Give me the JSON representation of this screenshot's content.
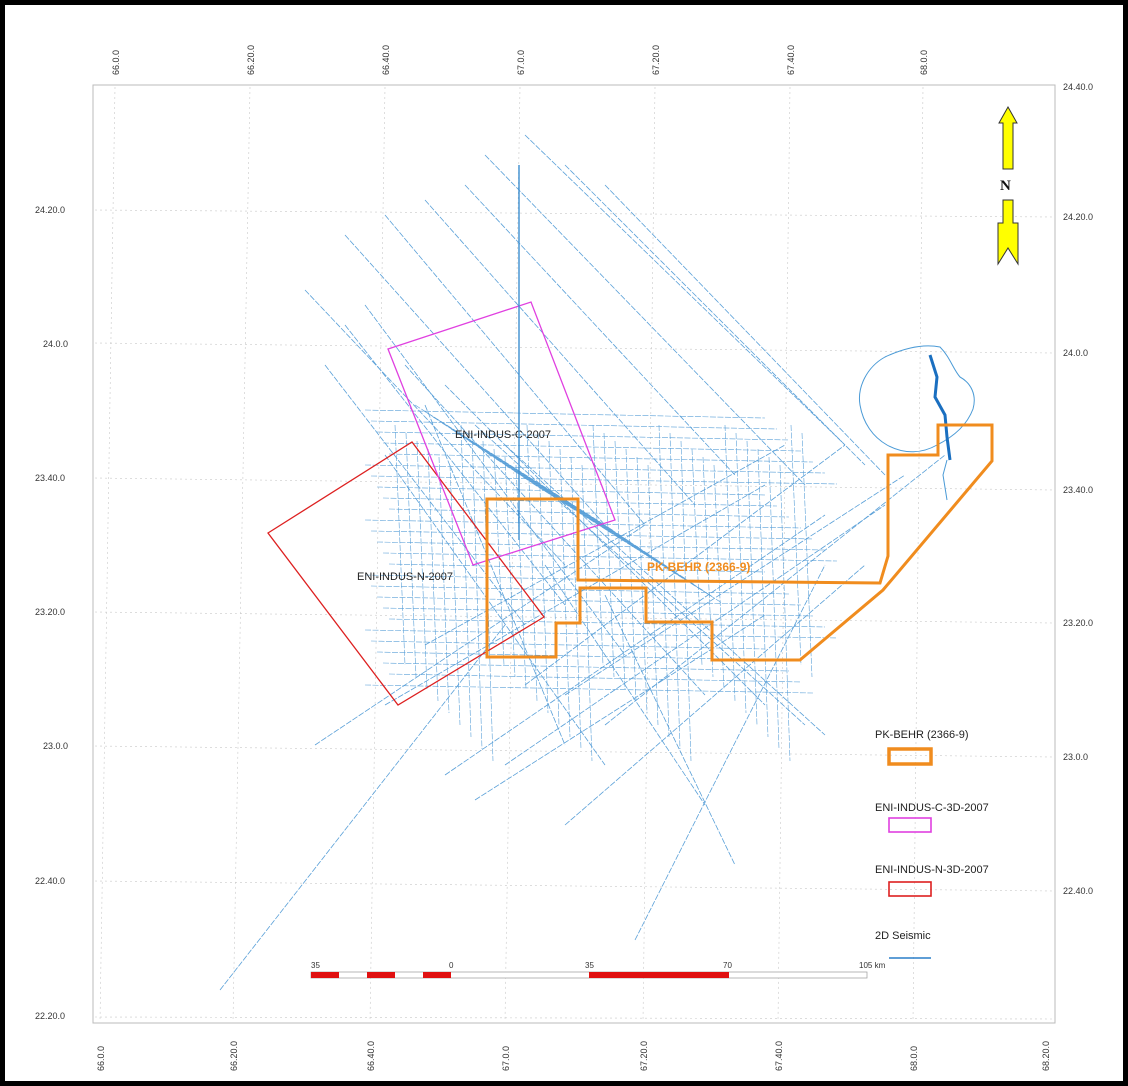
{
  "map": {
    "top_lon_ticks": [
      "66.0.0",
      "66.20.0",
      "66.40.0",
      "67.0.0",
      "67.20.0",
      "67.40.0",
      "68.0.0"
    ],
    "bottom_lon_ticks": [
      "66.0.0",
      "66.20.0",
      "66.40.0",
      "67.0.0",
      "67.20.0",
      "67.40.0",
      "68.0.0",
      "68.20.0"
    ],
    "left_lat_ticks": [
      "24.20.0",
      "24.0.0",
      "23.40.0",
      "23.20.0",
      "23.0.0",
      "22.40.0",
      "22.20.0"
    ],
    "right_lat_ticks": [
      "24.40.0",
      "24.20.0",
      "24.0.0",
      "23.40.0",
      "23.20.0",
      "23.0.0",
      "22.40.0"
    ]
  },
  "north_arrow": {
    "label": "N",
    "color": "#ffff00"
  },
  "blocks": {
    "pk_behr": {
      "label": "PK-BEHR (2366-9)",
      "color": "#f08c1e"
    },
    "eni_c": {
      "label": "ENI-INDUS-C-2007",
      "color": "#e040e0"
    },
    "eni_n": {
      "label": "ENI-INDUS-N-2007",
      "color": "#dd2020"
    }
  },
  "seismic_color": "#5aa0d8",
  "legend": {
    "items": [
      {
        "label": "PK-BEHR (2366-9)",
        "color": "#f08c1e"
      },
      {
        "label": "ENI-INDUS-C-3D-2007",
        "color": "#e040e0"
      },
      {
        "label": "ENI-INDUS-N-3D-2007",
        "color": "#dd2020"
      },
      {
        "label": "2D Seismic",
        "color": "#2a7fc8"
      }
    ]
  },
  "scale_bar": {
    "labels": [
      "35",
      "0",
      "35",
      "70",
      "105 km"
    ],
    "color": "#e01010"
  }
}
